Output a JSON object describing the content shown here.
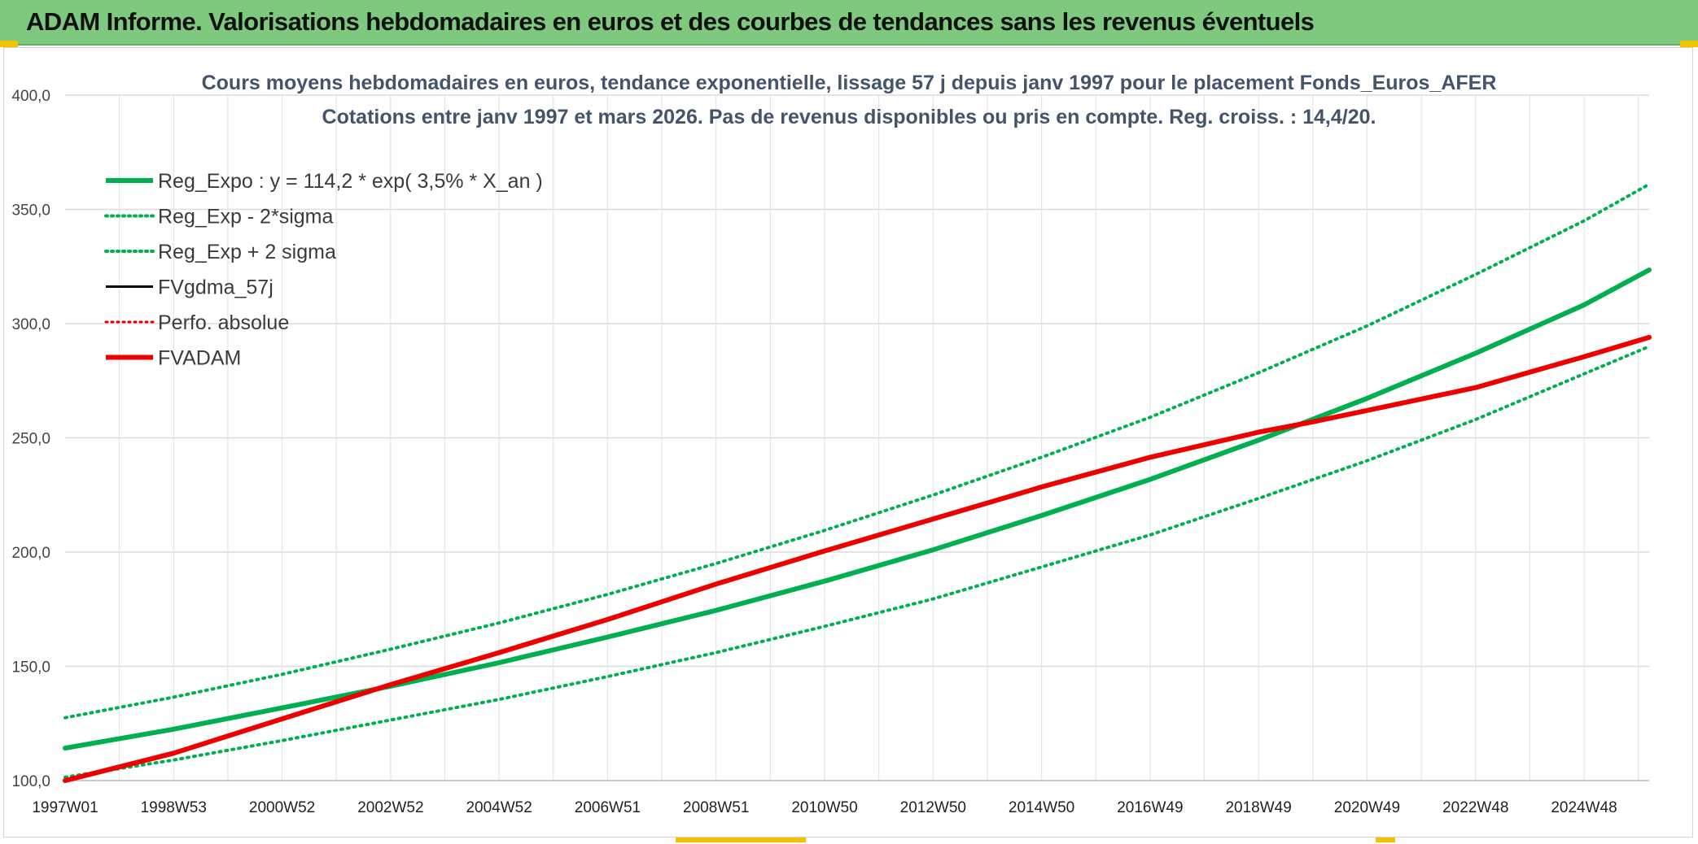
{
  "banner": {
    "title": "ADAM Informe. Valorisations hebdomadaires en euros et des courbes de tendances sans les revenus éventuels"
  },
  "chart_data": {
    "type": "line",
    "title": "Cours moyens hebdomadaires en euros, tendance exponentielle, lissage 57 j depuis janv 1997 pour le placement Fonds_Euros_AFER",
    "subtitle": "Cotations entre janv 1997 et mars 2026. Pas de revenus disponibles ou pris en compte. Reg. croiss. : 14,4/20.",
    "xlabel": "",
    "ylabel": "",
    "ylim": [
      100,
      400
    ],
    "yticks": [
      "100,0",
      "150,0",
      "200,0",
      "250,0",
      "300,0",
      "350,0",
      "400,0"
    ],
    "xlim": [
      1997.0,
      2026.2
    ],
    "xtick_labels": [
      "1997W01",
      "1998W53",
      "2000W52",
      "2002W52",
      "2004W52",
      "2006W51",
      "2008W51",
      "2010W50",
      "2012W50",
      "2014W50",
      "2016W49",
      "2018W49",
      "2020W49",
      "2022W48",
      "2024W48"
    ],
    "xtick_positions": [
      1997.0,
      1999.0,
      2001.0,
      2003.0,
      2005.0,
      2007.0,
      2009.0,
      2011.0,
      2013.0,
      2015.0,
      2017.0,
      2019.0,
      2021.0,
      2023.0,
      2025.0
    ],
    "grid": true,
    "legend_position": "top-left",
    "series": [
      {
        "name": "Reg_Expo : y = 114,2 * exp( 3,5% *  X_an )",
        "color": "#00b050",
        "style": "solid",
        "width": 6,
        "x": [
          1997,
          1999,
          2001,
          2003,
          2005,
          2007,
          2009,
          2011,
          2013,
          2015,
          2017,
          2019,
          2021,
          2023,
          2025,
          2026.2
        ],
        "y": [
          114.2,
          122.5,
          131.8,
          141.3,
          151.6,
          162.8,
          174.5,
          187.3,
          201.0,
          216.0,
          231.8,
          249.0,
          267.3,
          287.0,
          308.2,
          323.5
        ]
      },
      {
        "name": "Reg_Exp - 2*sigma",
        "color": "#00b050",
        "style": "dotted",
        "width": 4,
        "x": [
          1997,
          1999,
          2001,
          2003,
          2005,
          2007,
          2009,
          2011,
          2013,
          2015,
          2017,
          2019,
          2021,
          2023,
          2025,
          2026.2
        ],
        "y": [
          101.5,
          109.0,
          117.5,
          126.5,
          135.5,
          145.5,
          156.0,
          167.5,
          179.5,
          193.5,
          207.5,
          223.5,
          240.0,
          258.0,
          278.0,
          290.0
        ]
      },
      {
        "name": "Reg_Exp + 2 sigma",
        "color": "#00b050",
        "style": "dotted",
        "width": 4,
        "x": [
          1997,
          1999,
          2001,
          2003,
          2005,
          2007,
          2009,
          2011,
          2013,
          2015,
          2017,
          2019,
          2021,
          2023,
          2025,
          2026.2
        ],
        "y": [
          127.5,
          136.5,
          146.5,
          157.5,
          169.0,
          181.5,
          195.0,
          209.5,
          225.0,
          241.5,
          259.0,
          278.5,
          299.0,
          321.5,
          345.0,
          361.0
        ]
      },
      {
        "name": "FVgdma_57j",
        "color": "#000000",
        "style": "solid",
        "width": 3,
        "x": [],
        "y": []
      },
      {
        "name": "Perfo. absolue",
        "color": "#e00000",
        "style": "dotted",
        "width": 3,
        "x": [],
        "y": []
      },
      {
        "name": "FVADAM",
        "color": "#ee0000",
        "style": "solid",
        "width": 6,
        "x": [
          1997,
          1999,
          2001,
          2003,
          2005,
          2007,
          2009,
          2011,
          2013,
          2015,
          2017,
          2019,
          2020,
          2021,
          2023,
          2025,
          2026.2
        ],
        "y": [
          100.0,
          112.0,
          127.0,
          142.0,
          156.0,
          170.5,
          186.0,
          200.5,
          214.5,
          228.5,
          241.5,
          252.5,
          257.0,
          262.0,
          272.0,
          285.5,
          294.0
        ]
      }
    ]
  }
}
